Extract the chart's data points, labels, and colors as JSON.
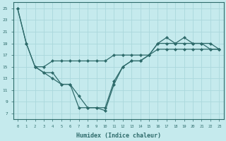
{
  "xlabel": "Humidex (Indice chaleur)",
  "background_color": "#c5eaed",
  "grid_color": "#aad8dc",
  "line_color": "#2e6b6b",
  "xlim": [
    -0.5,
    23.5
  ],
  "ylim": [
    6,
    26
  ],
  "xticks": [
    0,
    1,
    2,
    3,
    4,
    5,
    6,
    7,
    8,
    9,
    10,
    11,
    12,
    13,
    14,
    15,
    16,
    17,
    18,
    19,
    20,
    21,
    22,
    23
  ],
  "yticks": [
    7,
    9,
    11,
    13,
    15,
    17,
    19,
    21,
    23,
    25
  ],
  "line1_x": [
    0,
    1,
    2,
    3,
    4,
    5,
    6,
    7,
    8,
    9,
    10,
    11,
    12,
    13,
    14,
    15,
    16,
    17,
    18,
    19,
    20,
    21,
    22,
    23
  ],
  "line1_y": [
    25,
    19,
    15,
    14,
    13,
    12,
    12,
    10,
    8,
    8,
    7.5,
    12,
    15,
    16,
    16,
    17,
    19,
    20,
    19,
    20,
    19,
    19,
    19,
    18
  ],
  "line2_x": [
    0,
    1,
    2,
    3,
    4,
    5,
    6,
    7,
    8,
    9,
    10,
    11,
    12,
    13,
    14,
    15,
    16,
    17,
    18,
    19,
    20,
    21,
    22,
    23
  ],
  "line2_y": [
    25,
    19,
    15,
    14,
    14,
    12,
    12,
    8,
    8,
    8,
    8,
    12.5,
    15,
    16,
    16,
    17,
    19,
    19,
    19,
    19,
    19,
    19,
    18,
    18
  ],
  "line3_x": [
    2,
    3,
    4,
    5,
    6,
    7,
    8,
    9,
    10,
    11,
    12,
    13,
    14,
    15,
    16,
    17,
    18,
    19,
    20,
    21,
    22,
    23
  ],
  "line3_y": [
    15,
    15,
    16,
    16,
    16,
    16,
    16,
    16,
    16,
    17,
    17,
    17,
    17,
    17,
    18,
    18,
    18,
    18,
    18,
    18,
    18,
    18
  ]
}
